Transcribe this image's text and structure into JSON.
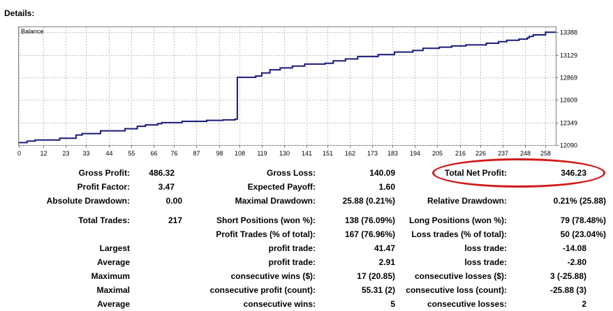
{
  "header": {
    "title": "Details:"
  },
  "chart_data": {
    "type": "line",
    "title": "Balance",
    "x_ticks": [
      0,
      12,
      23,
      33,
      44,
      55,
      66,
      76,
      87,
      98,
      108,
      119,
      130,
      141,
      151,
      162,
      173,
      183,
      194,
      205,
      216,
      226,
      237,
      248,
      258
    ],
    "y_ticks": [
      12090,
      12349,
      12609,
      12869,
      13129,
      13388
    ],
    "xlim": [
      0,
      263
    ],
    "ylim": [
      12090,
      13447
    ],
    "grid": true,
    "line_color": "#1a1a7a",
    "series": [
      {
        "x": [
          0,
          4,
          4,
          8,
          8,
          20,
          20,
          28,
          28,
          31,
          31,
          40,
          40,
          52,
          52,
          58,
          58,
          62,
          62,
          68,
          68,
          70,
          70,
          80,
          80,
          92,
          92,
          100,
          100,
          106,
          106,
          107,
          107,
          116,
          116,
          119,
          119,
          123,
          123,
          128,
          128,
          134,
          134,
          140,
          140,
          150,
          150,
          154,
          154,
          160,
          160,
          166,
          166,
          176,
          176,
          184,
          184,
          193,
          193,
          198,
          198,
          206,
          206,
          212,
          212,
          219,
          219,
          229,
          229,
          235,
          235,
          239,
          239,
          245,
          245,
          249,
          249,
          250,
          250,
          252,
          252,
          258,
          258,
          263
        ],
        "y": [
          12118,
          12118,
          12135,
          12135,
          12148,
          12148,
          12168,
          12168,
          12206,
          12206,
          12222,
          12222,
          12254,
          12254,
          12278,
          12278,
          12306,
          12306,
          12322,
          12322,
          12336,
          12336,
          12348,
          12348,
          12363,
          12363,
          12374,
          12374,
          12380,
          12380,
          12389,
          12389,
          12870,
          12870,
          12885,
          12885,
          12920,
          12920,
          12956,
          12956,
          12978,
          12978,
          13000,
          13000,
          13022,
          13022,
          13031,
          13031,
          13060,
          13060,
          13082,
          13082,
          13109,
          13109,
          13132,
          13132,
          13161,
          13161,
          13179,
          13179,
          13204,
          13204,
          13217,
          13217,
          13231,
          13231,
          13243,
          13243,
          13262,
          13262,
          13280,
          13280,
          13297,
          13297,
          13310,
          13310,
          13323,
          13323,
          13341,
          13341,
          13359,
          13359,
          13388,
          13388
        ]
      }
    ]
  },
  "stats": {
    "gross_profit_label": "Gross Profit:",
    "gross_profit": "486.32",
    "gross_loss_label": "Gross Loss:",
    "gross_loss": "140.09",
    "total_net_profit_label": "Total Net Profit:",
    "total_net_profit": "346.23",
    "profit_factor_label": "Profit Factor:",
    "profit_factor": "3.47",
    "expected_payoff_label": "Expected Payoff:",
    "expected_payoff": "1.60",
    "absolute_drawdown_label": "Absolute Drawdown:",
    "absolute_drawdown": "0.00",
    "maximal_drawdown_label": "Maximal Drawdown:",
    "maximal_drawdown": "25.88 (0.21%)",
    "relative_drawdown_label": "Relative Drawdown:",
    "relative_drawdown": "0.21% (25.88)",
    "total_trades_label": "Total Trades:",
    "total_trades": "217",
    "short_positions_label": "Short Positions (won %):",
    "short_positions": "138 (76.09%)",
    "long_positions_label": "Long Positions (won %):",
    "long_positions": "79 (78.48%)",
    "profit_trades_label": "Profit Trades (% of total):",
    "profit_trades": "167 (76.96%)",
    "loss_trades_label": "Loss trades (% of total):",
    "loss_trades": "50 (23.04%)",
    "largest_label": "Largest",
    "largest_profit_label": "profit trade:",
    "largest_profit": "41.47",
    "largest_loss_label": "loss trade:",
    "largest_loss": "-14.08",
    "average_label": "Average",
    "average_profit_label": "profit trade:",
    "average_profit": "2.91",
    "average_loss_label": "loss trade:",
    "average_loss": "-2.80",
    "maximum_label": "Maximum",
    "max_consec_wins_label": "consecutive wins ($):",
    "max_consec_wins": "17 (20.85)",
    "max_consec_losses_label": "consecutive losses ($):",
    "max_consec_losses": "3 (-25.88)",
    "maximal_label": "Maximal",
    "maximal_consec_profit_label": "consecutive profit (count):",
    "maximal_consec_profit": "55.31 (2)",
    "maximal_consec_loss_label": "consecutive loss (count):",
    "maximal_consec_loss": "-25.88 (3)",
    "average2_label": "Average",
    "avg_consec_wins_label": "consecutive wins:",
    "avg_consec_wins": "5",
    "avg_consec_losses_label": "consecutive losses:",
    "avg_consec_losses": "2"
  }
}
